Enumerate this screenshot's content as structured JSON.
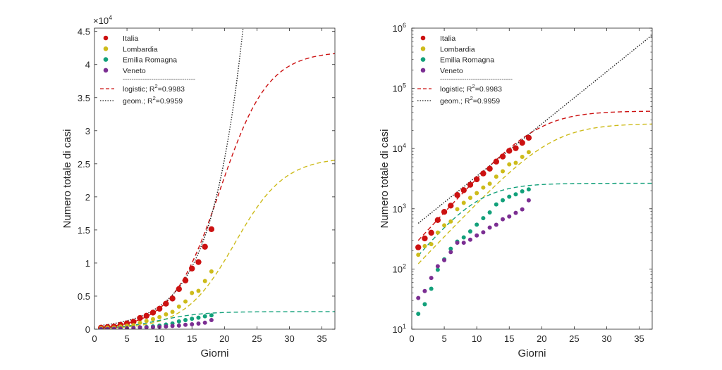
{
  "chart_data": [
    {
      "type": "scatter",
      "xlabel": "Giorni",
      "ylabel": "Numero totale di casi",
      "exponent_label": "×10",
      "exponent_value": "4",
      "xlim": [
        0,
        37
      ],
      "ylim": [
        0,
        45500
      ],
      "yscale": "linear",
      "xticks": [
        0,
        5,
        10,
        15,
        20,
        25,
        30,
        35
      ],
      "xtick_labels": [
        "0",
        "5",
        "10",
        "15",
        "20",
        "25",
        "30",
        "35"
      ],
      "yticks": [
        0,
        5000,
        10000,
        15000,
        20000,
        25000,
        30000,
        35000,
        40000,
        45000
      ],
      "ytick_labels": [
        "0",
        "0.5",
        "1",
        "1.5",
        "2",
        "2.5",
        "3",
        "3.5",
        "4",
        "4.5"
      ],
      "legend_position": "top-left",
      "grid": false
    },
    {
      "type": "scatter",
      "xlabel": "Giorni",
      "ylabel": "Numero totale di casi",
      "xlim": [
        0,
        37
      ],
      "ylim": [
        10,
        1000000
      ],
      "yscale": "log",
      "xticks": [
        0,
        5,
        10,
        15,
        20,
        25,
        30,
        35
      ],
      "xtick_labels": [
        "0",
        "5",
        "10",
        "15",
        "20",
        "25",
        "30",
        "35"
      ],
      "yticks": [
        10,
        100,
        1000,
        10000,
        100000,
        1000000
      ],
      "ytick_base": [
        "10",
        "10",
        "10",
        "10",
        "10",
        "10"
      ],
      "ytick_exp": [
        "1",
        "2",
        "3",
        "4",
        "5",
        "6"
      ],
      "legend_position": "top-left",
      "grid": false
    }
  ],
  "series": [
    {
      "name": "Italia",
      "color": "#cc1111",
      "x": [
        1,
        2,
        3,
        4,
        5,
        6,
        7,
        8,
        9,
        10,
        11,
        12,
        13,
        14,
        15,
        16,
        17,
        18
      ],
      "y": [
        229,
        322,
        400,
        650,
        888,
        1128,
        1694,
        2036,
        2502,
        3089,
        3858,
        4636,
        6076,
        7375,
        9172,
        10149,
        12462,
        15113
      ]
    },
    {
      "name": "Lombardia",
      "color": "#cdbb1a",
      "x": [
        1,
        2,
        3,
        4,
        5,
        6,
        7,
        8,
        9,
        10,
        11,
        12,
        13,
        14,
        15,
        16,
        17,
        18
      ],
      "y": [
        172,
        240,
        258,
        403,
        531,
        615,
        984,
        1254,
        1520,
        1820,
        2251,
        2612,
        3420,
        4189,
        5469,
        5791,
        7280,
        8725
      ]
    },
    {
      "name": "Emilia Romagna",
      "color": "#12a07a",
      "x": [
        1,
        2,
        3,
        4,
        5,
        6,
        7,
        8,
        9,
        10,
        11,
        12,
        13,
        14,
        15,
        16,
        17,
        18
      ],
      "y": [
        18,
        26,
        47,
        97,
        145,
        217,
        285,
        335,
        420,
        544,
        698,
        870,
        1180,
        1386,
        1586,
        1739,
        1947,
        2100
      ]
    },
    {
      "name": "Veneto",
      "color": "#7b2e92",
      "x": [
        1,
        2,
        3,
        4,
        5,
        6,
        7,
        8,
        9,
        10,
        11,
        12,
        13,
        14,
        15,
        16,
        17,
        18
      ],
      "y": [
        33,
        43,
        71,
        111,
        140,
        191,
        273,
        273,
        307,
        360,
        407,
        488,
        543,
        670,
        744,
        856,
        977,
        1384
      ]
    }
  ],
  "fits": [
    {
      "label": "logistic;",
      "r2_label": "R",
      "r2_sup": "2",
      "r2_value": "=0.9983",
      "color": "#cc1111",
      "style": "dashed"
    },
    {
      "label": "geom.;",
      "r2_label": "R",
      "r2_sup": "2",
      "r2_value": "=0.9959",
      "color": "#222222",
      "style": "dotted"
    }
  ],
  "fit_curves": {
    "italia_logistic": {
      "K": 42000,
      "r": 0.27,
      "x0": 19.3,
      "color": "#cc1111"
    },
    "lombardia_logistic": {
      "K": 26000,
      "r": 0.26,
      "x0": 21.6,
      "color": "#cdbb1a"
    },
    "emilia_logistic": {
      "K": 2650,
      "r": 0.3,
      "x0": 10.0,
      "color": "#12a07a"
    },
    "italia_geometric": {
      "a": 470,
      "b": 0.2,
      "color": "#222222"
    }
  },
  "legend_separator": "---------------------------------"
}
